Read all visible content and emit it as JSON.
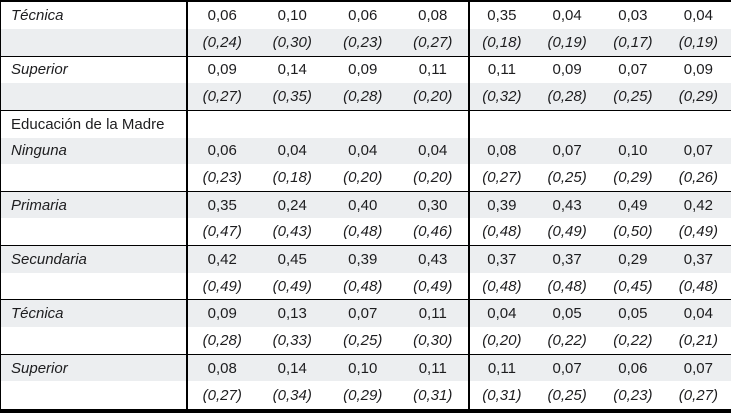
{
  "colors": {
    "zebra_row": "#eceef0",
    "border": "#000000",
    "text": "#1d1d1f",
    "background": "#ffffff"
  },
  "table": {
    "note": "Table fragment: means with standard deviations in parentheses, two groups of four columns",
    "rows": [
      {
        "kind": "category",
        "label": "Técnica",
        "cells": [
          "0,06",
          "0,10",
          "0,06",
          "0,08",
          "0,35",
          "0,04",
          "0,03",
          "0,04"
        ]
      },
      {
        "kind": "sd",
        "label": "",
        "cells": [
          "(0,24)",
          "(0,30)",
          "(0,23)",
          "(0,27)",
          "(0,18)",
          "(0,19)",
          "(0,17)",
          "(0,19)"
        ]
      },
      {
        "kind": "category",
        "label": "Superior",
        "cells": [
          "0,09",
          "0,14",
          "0,09",
          "0,11",
          "0,11",
          "0,09",
          "0,07",
          "0,09"
        ]
      },
      {
        "kind": "sd",
        "label": "",
        "cells": [
          "(0,27)",
          "(0,35)",
          "(0,28)",
          "(0,20)",
          "(0,32)",
          "(0,28)",
          "(0,25)",
          "(0,29)"
        ]
      },
      {
        "kind": "section",
        "label": "Educación de la Madre",
        "cells": [
          "",
          "",
          "",
          "",
          "",
          "",
          "",
          ""
        ]
      },
      {
        "kind": "category",
        "label": "Ninguna",
        "cells": [
          "0,06",
          "0,04",
          "0,04",
          "0,04",
          "0,08",
          "0,07",
          "0,10",
          "0,07"
        ]
      },
      {
        "kind": "sd",
        "label": "",
        "cells": [
          "(0,23)",
          "(0,18)",
          "(0,20)",
          "(0,20)",
          "(0,27)",
          "(0,25)",
          "(0,29)",
          "(0,26)"
        ]
      },
      {
        "kind": "category",
        "label": "Primaria",
        "cells": [
          "0,35",
          "0,24",
          "0,40",
          "0,30",
          "0,39",
          "0,43",
          "0,49",
          "0,42"
        ]
      },
      {
        "kind": "sd",
        "label": "",
        "cells": [
          "(0,47)",
          "(0,43)",
          "(0,48)",
          "(0,46)",
          "(0,48)",
          "(0,49)",
          "(0,50)",
          "(0,49)"
        ]
      },
      {
        "kind": "category",
        "label": "Secundaria",
        "cells": [
          "0,42",
          "0,45",
          "0,39",
          "0,43",
          "0,37",
          "0,37",
          "0,29",
          "0,37"
        ]
      },
      {
        "kind": "sd",
        "label": "",
        "cells": [
          "(0,49)",
          "(0,49)",
          "(0,48)",
          "(0,49)",
          "(0,48)",
          "(0,48)",
          "(0,45)",
          "(0,48)"
        ]
      },
      {
        "kind": "category",
        "label": "Técnica",
        "cells": [
          "0,09",
          "0,13",
          "0,07",
          "0,11",
          "0,04",
          "0,05",
          "0,05",
          "0,04"
        ]
      },
      {
        "kind": "sd",
        "label": "",
        "cells": [
          "(0,28)",
          "(0,33)",
          "(0,25)",
          "(0,30)",
          "(0,20)",
          "(0,22)",
          "(0,22)",
          "(0,21)"
        ]
      },
      {
        "kind": "category",
        "label": "Superior",
        "cells": [
          "0,08",
          "0,14",
          "0,10",
          "0,11",
          "0,11",
          "0,07",
          "0,06",
          "0,07"
        ]
      },
      {
        "kind": "sd",
        "label": "",
        "cells": [
          "(0,27)",
          "(0,34)",
          "(0,29)",
          "(0,31)",
          "(0,31)",
          "(0,25)",
          "(0,23)",
          "(0,27)"
        ]
      }
    ]
  }
}
